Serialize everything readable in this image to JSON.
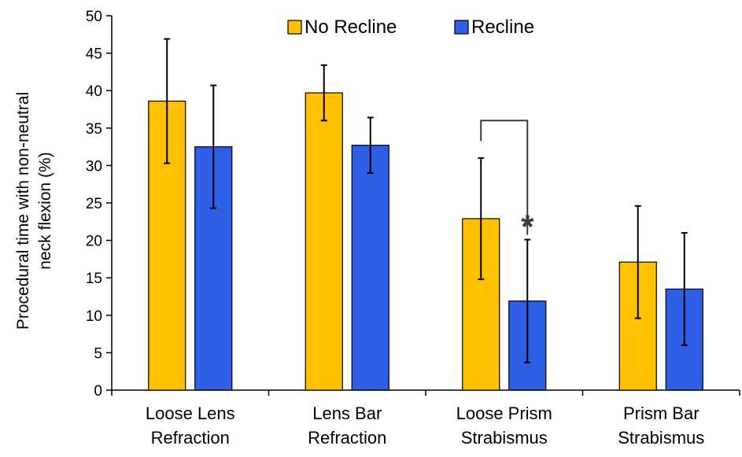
{
  "chart_data": {
    "type": "bar",
    "categories": [
      [
        "Loose Lens",
        "Refraction"
      ],
      [
        "Lens Bar",
        "Refraction"
      ],
      [
        "Loose Prism",
        "Strabismus"
      ],
      [
        "Prism Bar",
        "Strabismus"
      ]
    ],
    "series": [
      {
        "name": "No Recline",
        "color": "#FFC000",
        "values": [
          38.6,
          39.7,
          22.9,
          17.1
        ],
        "errors": [
          8.3,
          3.7,
          8.1,
          7.5
        ]
      },
      {
        "name": "Recline",
        "color": "#2F5FE6",
        "values": [
          32.5,
          32.7,
          11.9,
          13.5
        ],
        "errors": [
          8.2,
          3.7,
          8.2,
          7.5
        ]
      }
    ],
    "ylabel": [
      "Procedural time with non-neutral",
      "neck flexion (%)"
    ],
    "ylim": [
      0,
      50
    ],
    "yticks": [
      0,
      5,
      10,
      15,
      20,
      25,
      30,
      35,
      40,
      45,
      50
    ],
    "legend_position": "top-center",
    "grid": false,
    "annotations": [
      {
        "text": "*",
        "category_index": 2,
        "series_index": 1,
        "bracket_between_series": [
          0,
          1
        ],
        "bracket_y": 36
      }
    ]
  }
}
